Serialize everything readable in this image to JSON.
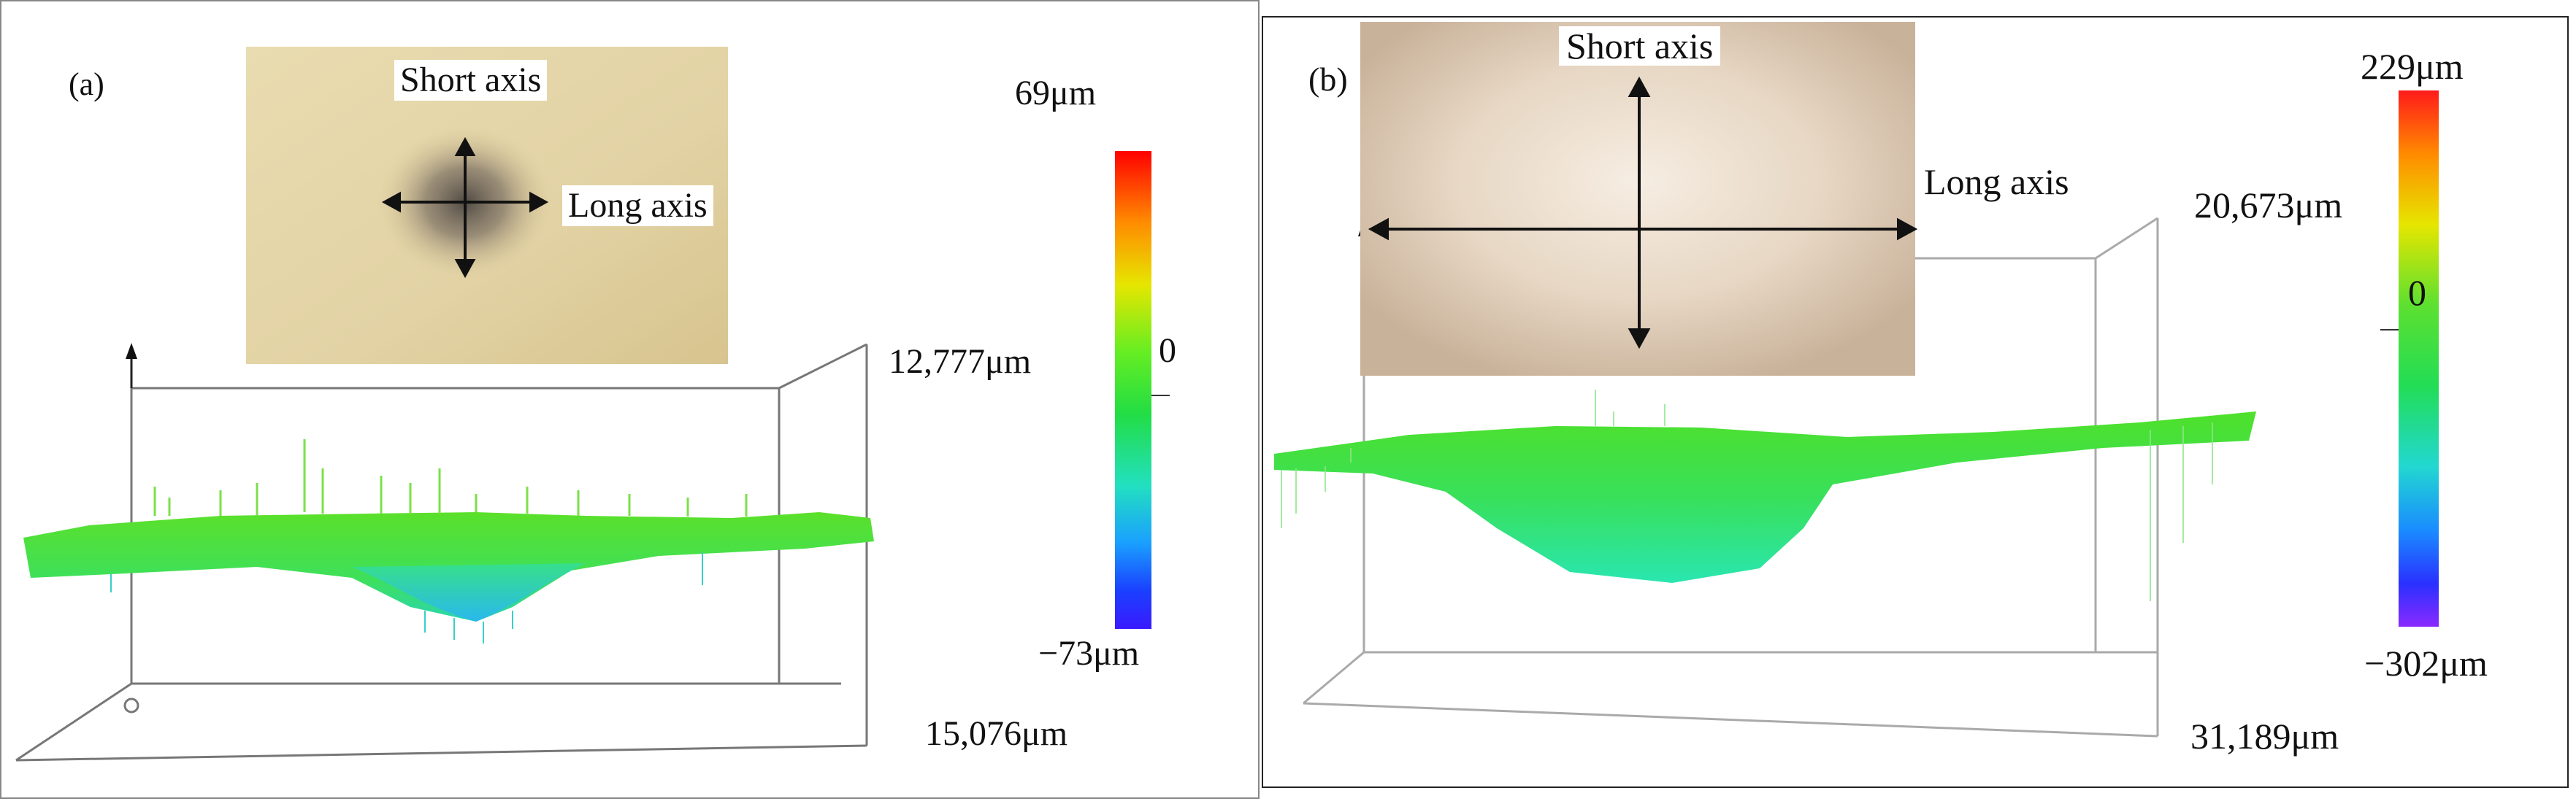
{
  "panel_a": {
    "label": "(a)",
    "short_axis": "Short axis",
    "long_axis": "Long axis",
    "scale_max": "69μm",
    "scale_zero": "0",
    "scale_min": "−73μm",
    "dim_upper": "12,777μm",
    "dim_lower": "15,076μm"
  },
  "panel_b": {
    "label": "(b)",
    "short_axis": "Short axis",
    "long_axis": "Long axis",
    "scale_max": "229μm",
    "scale_zero": "0",
    "scale_min": "−302μm",
    "dim_upper": "20,673μm",
    "dim_lower": "31,189μm"
  }
}
